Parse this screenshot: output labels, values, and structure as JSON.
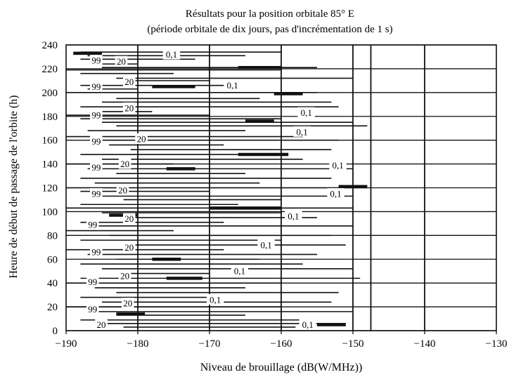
{
  "chart_data": {
    "type": "line",
    "title": "Résultats pour la position orbitale 85° E",
    "subtitle": "(période orbitale de dix jours, pas d'incrémentation de 1 s)",
    "xlabel": "Niveau de brouillage (dB(W/MHz))",
    "ylabel": "Heure de début de passage de l'orbite (h)",
    "xlim": [
      -190,
      -130
    ],
    "ylim": [
      0,
      240
    ],
    "x_ticks": [
      "−190",
      "−180",
      "−170",
      "−160",
      "−150",
      "−140",
      "−130"
    ],
    "y_ticks": [
      "0",
      "20",
      "40",
      "60",
      "80",
      "100",
      "120",
      "140",
      "160",
      "180",
      "200",
      "220",
      "240"
    ],
    "grid": true,
    "vertical_grid_x": [
      -180,
      -170,
      -160,
      -150,
      -147.5,
      -140
    ],
    "contour_labels": [
      {
        "text": "99",
        "x": -185.8,
        "y": 227
      },
      {
        "text": "20",
        "x": -182.3,
        "y": 226
      },
      {
        "text": "0,1",
        "x": -175.3,
        "y": 232
      },
      {
        "text": "99",
        "x": -185.8,
        "y": 205
      },
      {
        "text": "20",
        "x": -181.2,
        "y": 209
      },
      {
        "text": "0,1",
        "x": -166.8,
        "y": 206
      },
      {
        "text": "99",
        "x": -185.8,
        "y": 181
      },
      {
        "text": "20",
        "x": -181.2,
        "y": 187
      },
      {
        "text": "0,1",
        "x": -156.5,
        "y": 183
      },
      {
        "text": "0,1",
        "x": -157.1,
        "y": 167
      },
      {
        "text": "99",
        "x": -185.8,
        "y": 159
      },
      {
        "text": "20",
        "x": -179.5,
        "y": 161
      },
      {
        "text": "99",
        "x": -185.8,
        "y": 137
      },
      {
        "text": "20",
        "x": -181.8,
        "y": 140
      },
      {
        "text": "0,1",
        "x": -152.1,
        "y": 139
      },
      {
        "text": "99",
        "x": -185.8,
        "y": 115
      },
      {
        "text": "20",
        "x": -182.1,
        "y": 118
      },
      {
        "text": "0,1",
        "x": -152.4,
        "y": 115
      },
      {
        "text": "0,1",
        "x": -158.3,
        "y": 96
      },
      {
        "text": "99",
        "x": -186.3,
        "y": 89
      },
      {
        "text": "20",
        "x": -181.2,
        "y": 94
      },
      {
        "text": "0,1",
        "x": -162.1,
        "y": 72
      },
      {
        "text": "99",
        "x": -185.8,
        "y": 66
      },
      {
        "text": "20",
        "x": -181.2,
        "y": 70
      },
      {
        "text": "0,1",
        "x": -165.8,
        "y": 50
      },
      {
        "text": "99",
        "x": -186.3,
        "y": 41
      },
      {
        "text": "20",
        "x": -181.8,
        "y": 46
      },
      {
        "text": "0,1",
        "x": -169.2,
        "y": 26
      },
      {
        "text": "99",
        "x": -186.3,
        "y": 18
      },
      {
        "text": "20",
        "x": -181.4,
        "y": 23
      },
      {
        "text": "0,1",
        "x": -156.3,
        "y": 5
      },
      {
        "text": "20",
        "x": -185.1,
        "y": 5
      }
    ],
    "contour_lines": [
      {
        "y": 234,
        "x": [
          -188,
          -160
        ]
      },
      {
        "y": 231,
        "x": [
          -187,
          -165
        ]
      },
      {
        "y": 228,
        "x": [
          -188,
          -172
        ]
      },
      {
        "y": 224,
        "x": [
          -186,
          -180
        ]
      },
      {
        "y": 221,
        "x": [
          -185,
          -155
        ]
      },
      {
        "y": 219,
        "x": [
          -190,
          -160
        ]
      },
      {
        "y": 216,
        "x": [
          -188,
          -175
        ]
      },
      {
        "y": 212,
        "x": [
          -183,
          -150
        ]
      },
      {
        "y": 210,
        "x": [
          -181,
          -170
        ]
      },
      {
        "y": 206,
        "x": [
          -188,
          -168
        ]
      },
      {
        "y": 203,
        "x": [
          -187,
          -180
        ]
      },
      {
        "y": 200,
        "x": [
          -190,
          -155
        ]
      },
      {
        "y": 195,
        "x": [
          -183,
          -163
        ]
      },
      {
        "y": 192,
        "x": [
          -185,
          -153
        ]
      },
      {
        "y": 188,
        "x": [
          -188,
          -152
        ]
      },
      {
        "y": 184,
        "x": [
          -185,
          -178
        ]
      },
      {
        "y": 181,
        "x": [
          -190,
          -170
        ]
      },
      {
        "y": 178,
        "x": [
          -188,
          -160
        ]
      },
      {
        "y": 175,
        "x": [
          -185,
          -150
        ]
      },
      {
        "y": 172,
        "x": [
          -183,
          -148
        ]
      },
      {
        "y": 168,
        "x": [
          -187,
          -165
        ]
      },
      {
        "y": 163,
        "x": [
          -190,
          -157
        ]
      },
      {
        "y": 160,
        "x": [
          -186,
          -152
        ]
      },
      {
        "y": 156,
        "x": [
          -184,
          -168
        ]
      },
      {
        "y": 152,
        "x": [
          -181,
          -153
        ]
      },
      {
        "y": 148,
        "x": [
          -188,
          -160
        ]
      },
      {
        "y": 144,
        "x": [
          -185,
          -157
        ]
      },
      {
        "y": 140,
        "x": [
          -190,
          -175
        ]
      },
      {
        "y": 136,
        "x": [
          -187,
          -150
        ]
      },
      {
        "y": 132,
        "x": [
          -183,
          -165
        ]
      },
      {
        "y": 128,
        "x": [
          -188,
          -153
        ]
      },
      {
        "y": 124,
        "x": [
          -186,
          -163
        ]
      },
      {
        "y": 120,
        "x": [
          -190,
          -148
        ]
      },
      {
        "y": 117,
        "x": [
          -188,
          -170
        ]
      },
      {
        "y": 113,
        "x": [
          -185,
          -150
        ]
      },
      {
        "y": 110,
        "x": [
          -182,
          -160
        ]
      },
      {
        "y": 106,
        "x": [
          -188,
          -166
        ]
      },
      {
        "y": 103,
        "x": [
          -190,
          -150
        ]
      },
      {
        "y": 99,
        "x": [
          -185,
          -160
        ]
      },
      {
        "y": 95,
        "x": [
          -182,
          -155
        ]
      },
      {
        "y": 91,
        "x": [
          -188,
          -168
        ]
      },
      {
        "y": 88,
        "x": [
          -186,
          -150
        ]
      },
      {
        "y": 84,
        "x": [
          -190,
          -175
        ]
      },
      {
        "y": 80,
        "x": [
          -184,
          -153
        ]
      },
      {
        "y": 76,
        "x": [
          -188,
          -160
        ]
      },
      {
        "y": 72,
        "x": [
          -181,
          -151
        ]
      },
      {
        "y": 68,
        "x": [
          -190,
          -168
        ]
      },
      {
        "y": 64,
        "x": [
          -187,
          -155
        ]
      },
      {
        "y": 60,
        "x": [
          -183,
          -163
        ]
      },
      {
        "y": 56,
        "x": [
          -188,
          -157
        ]
      },
      {
        "y": 52,
        "x": [
          -185,
          -150
        ]
      },
      {
        "y": 48,
        "x": [
          -182,
          -170
        ]
      },
      {
        "y": 44,
        "x": [
          -188,
          -149
        ]
      },
      {
        "y": 40,
        "x": [
          -190,
          -160
        ]
      },
      {
        "y": 36,
        "x": [
          -186,
          -165
        ]
      },
      {
        "y": 32,
        "x": [
          -183,
          -152
        ]
      },
      {
        "y": 28,
        "x": [
          -188,
          -170
        ]
      },
      {
        "y": 24,
        "x": [
          -185,
          -153
        ]
      },
      {
        "y": 20,
        "x": [
          -190,
          -160
        ]
      },
      {
        "y": 16,
        "x": [
          -187,
          -150
        ]
      },
      {
        "y": 13,
        "x": [
          -183,
          -165
        ]
      },
      {
        "y": 9,
        "x": [
          -188,
          -157
        ]
      },
      {
        "y": 6,
        "x": [
          -185,
          -151
        ]
      },
      {
        "y": 3,
        "x": [
          -182,
          -158
        ]
      }
    ],
    "thick_segments": [
      {
        "y": 233,
        "x": [
          -189,
          -185
        ]
      },
      {
        "y": 221,
        "x": [
          -166,
          -160
        ]
      },
      {
        "y": 205,
        "x": [
          -178,
          -172
        ]
      },
      {
        "y": 199,
        "x": [
          -161,
          -157
        ]
      },
      {
        "y": 176,
        "x": [
          -165,
          -161
        ]
      },
      {
        "y": 148,
        "x": [
          -166,
          -159
        ]
      },
      {
        "y": 136,
        "x": [
          -176,
          -172
        ]
      },
      {
        "y": 121,
        "x": [
          -152,
          -148
        ]
      },
      {
        "y": 103,
        "x": [
          -170,
          -160
        ]
      },
      {
        "y": 97,
        "x": [
          -184,
          -180
        ]
      },
      {
        "y": 60,
        "x": [
          -178,
          -174
        ]
      },
      {
        "y": 44,
        "x": [
          -176,
          -171
        ]
      },
      {
        "y": 14,
        "x": [
          -183,
          -179
        ]
      },
      {
        "y": 5,
        "x": [
          -155,
          -151
        ]
      }
    ]
  }
}
